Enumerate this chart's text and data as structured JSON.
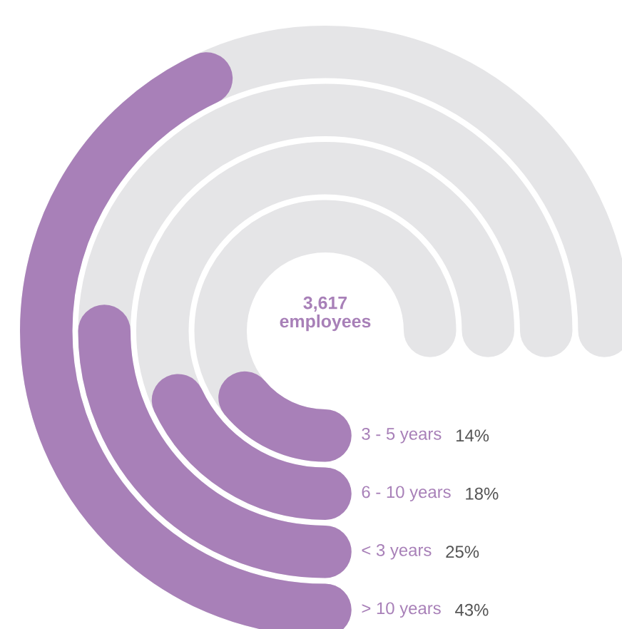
{
  "chart_data": {
    "type": "other",
    "annotations": [
      "3,617 employees"
    ],
    "categories": [
      "3 - 5 years",
      "6 - 10 years",
      "< 3 years",
      "> 10 years"
    ],
    "values": [
      14,
      18,
      25,
      43
    ],
    "value_labels": [
      "14%",
      "18%",
      "25%",
      "43%"
    ],
    "color": "#a880b8"
  }
}
